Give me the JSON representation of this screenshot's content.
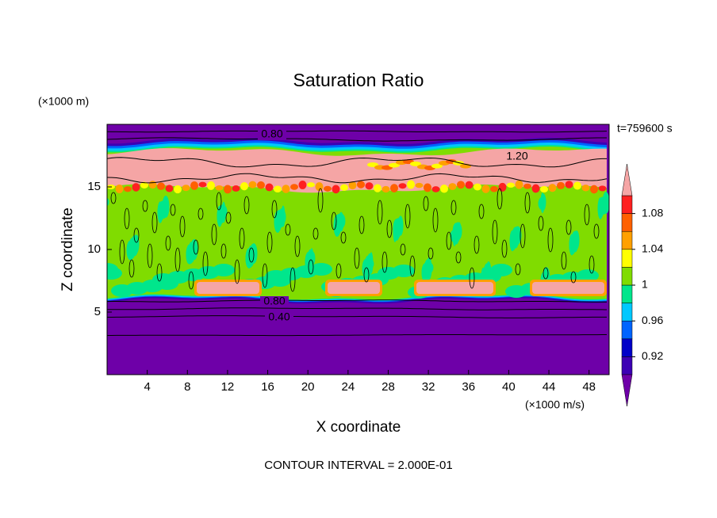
{
  "chart_data": {
    "type": "contour",
    "title": "Saturation Ratio",
    "x_label": "X coordinate",
    "y_label": "Z coordinate",
    "x_unit": "(×1000 m/s)",
    "y_unit": "(×1000 m)",
    "time_label": "t=759600 s",
    "footer": "CONTOUR INTERVAL = 2.000E-01",
    "contour_labels": [
      "0.80",
      "1.20",
      "0.80",
      "0.40"
    ],
    "xlim": [
      0,
      50
    ],
    "xticks": [
      4,
      8,
      12,
      16,
      20,
      24,
      28,
      32,
      36,
      40,
      44,
      48
    ],
    "ylim": [
      0,
      20
    ],
    "yticks": [
      5,
      10,
      15
    ],
    "colorbar": {
      "lim": [
        0.9,
        1.1
      ],
      "ticks": [
        0.92,
        0.96,
        1,
        1.04,
        1.08
      ],
      "colors": [
        "#3c00b4",
        "#0000c8",
        "#0064ff",
        "#00c8ff",
        "#00e68c",
        "#80dc00",
        "#ffff00",
        "#ffa000",
        "#ff6000",
        "#ff2020"
      ],
      "under": "#6e00a8",
      "over": "#f5a5a5"
    }
  }
}
